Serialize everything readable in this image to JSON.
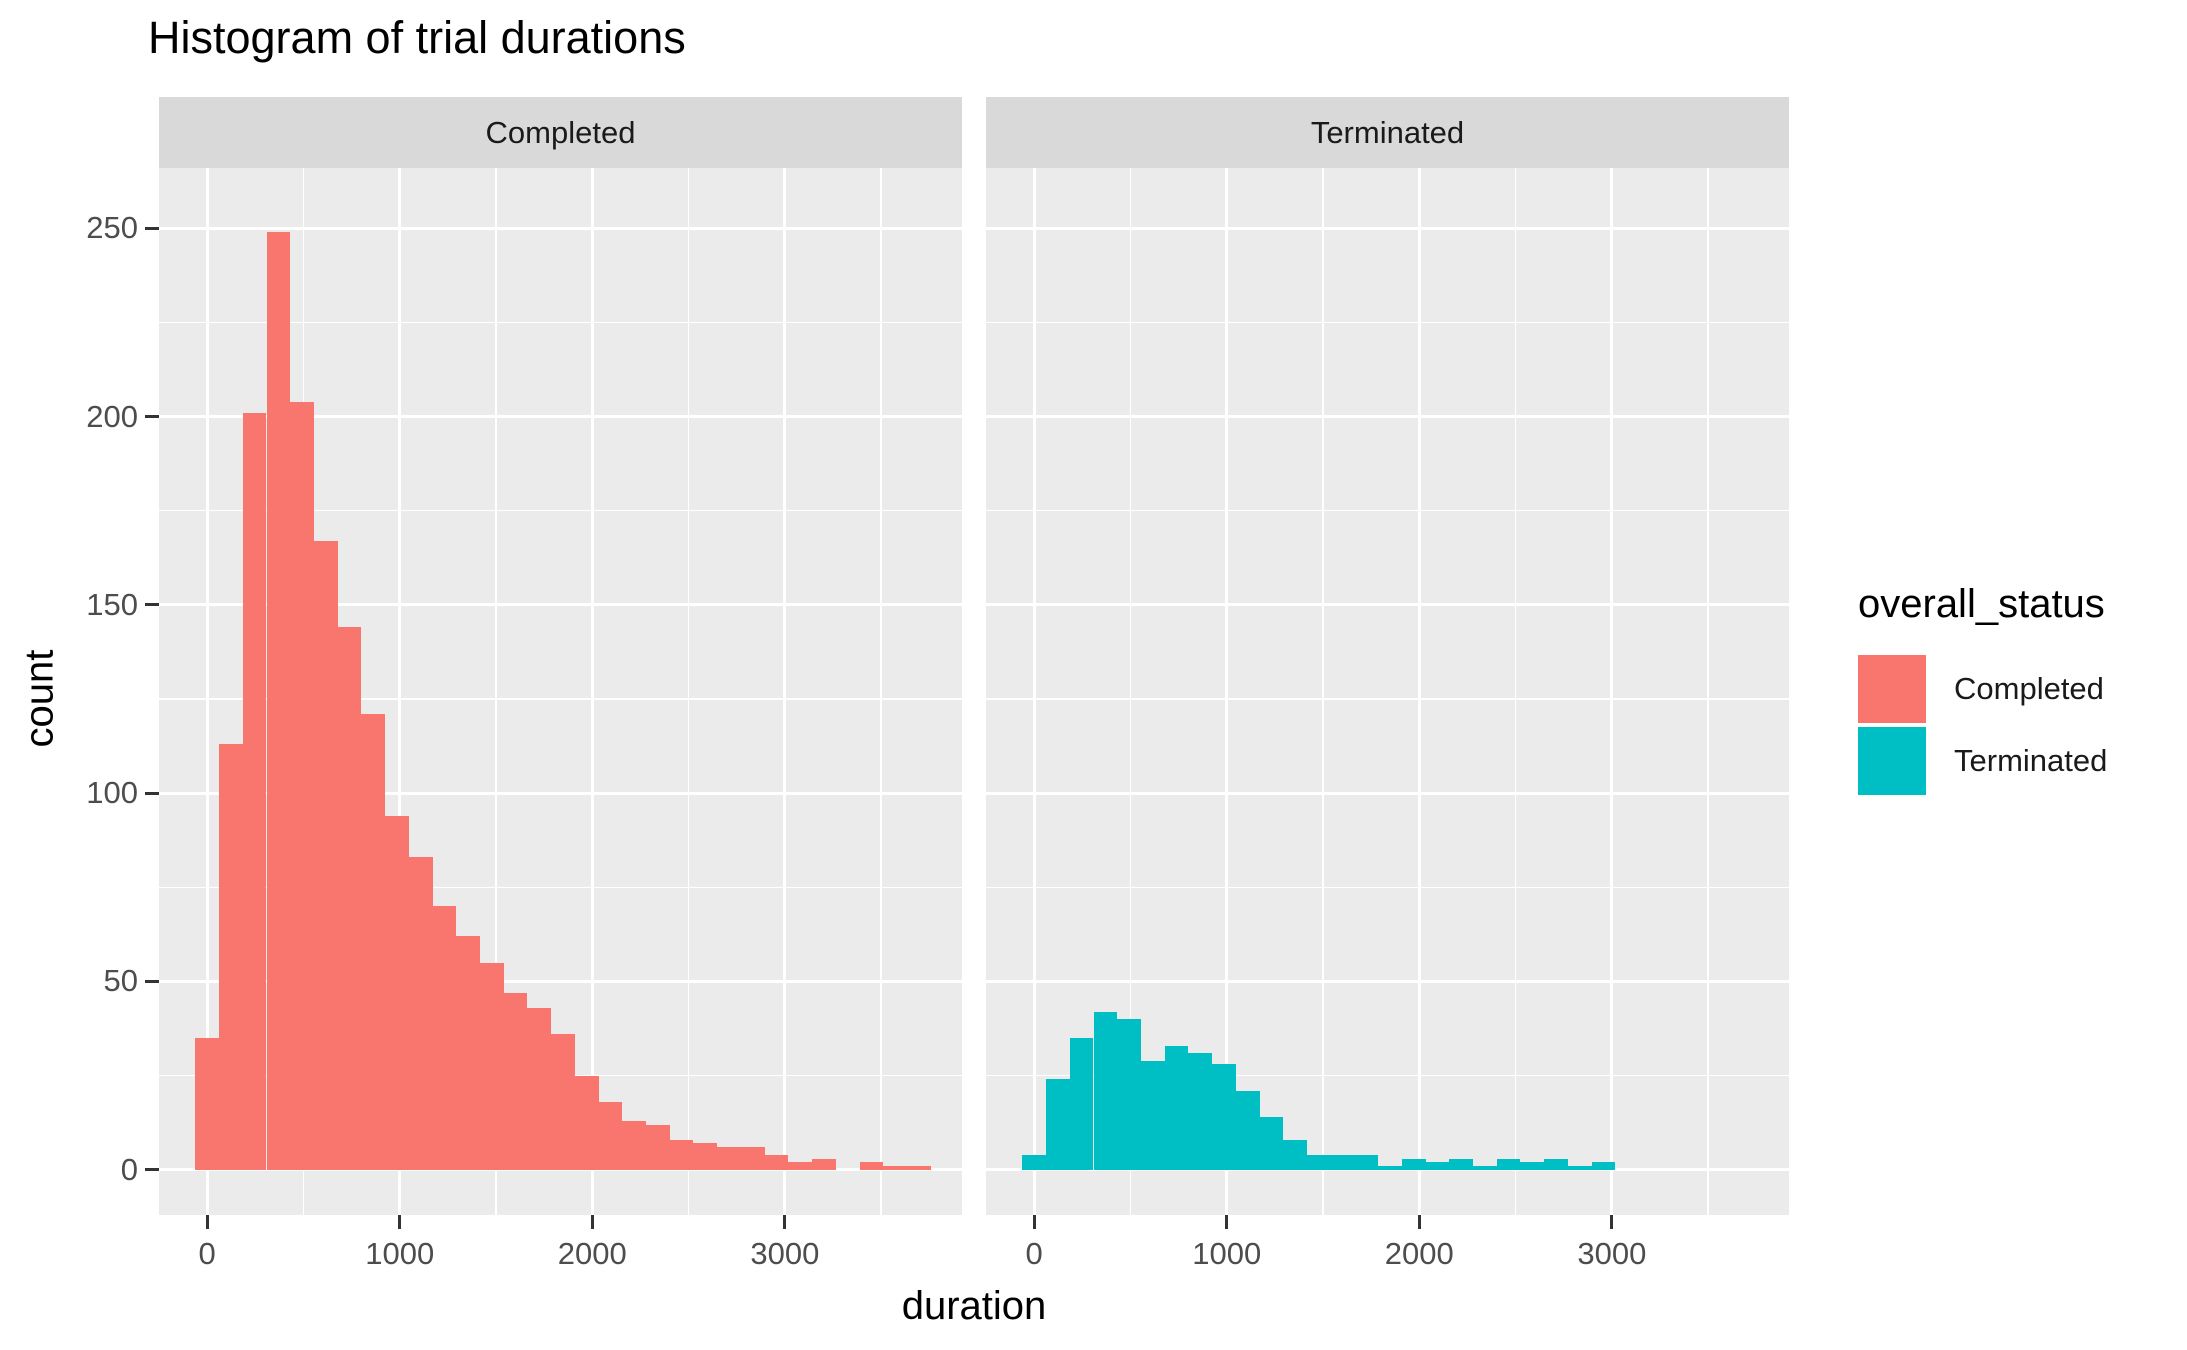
{
  "title": "Histogram of trial durations",
  "colors": {
    "panel_bg": "#EBEBEB",
    "strip_bg": "#D9D9D9",
    "grid": "#FFFFFF",
    "axis_text": "#4D4D4D",
    "tick_mark": "#333333",
    "completed": "#F8766D",
    "terminated": "#00BFC4"
  },
  "legend": {
    "title": "overall_status",
    "items": [
      {
        "label": "Completed",
        "color": "#F8766D"
      },
      {
        "label": "Terminated",
        "color": "#00BFC4"
      }
    ]
  },
  "chart_data": {
    "type": "bar",
    "subtype": "faceted-histogram",
    "title": "Histogram of trial durations",
    "xlabel": "duration",
    "ylabel": "count",
    "facets": [
      "Completed",
      "Terminated"
    ],
    "legend_title": "overall_status",
    "legend_position": "right",
    "grid": true,
    "bin_width": 123.2,
    "bin_first_center": 0,
    "x_domain": [
      -250,
      3920
    ],
    "y_domain": [
      -12,
      266
    ],
    "x_ticks": [
      0,
      1000,
      2000,
      3000
    ],
    "x_minor_ticks": [
      500,
      1500,
      2500,
      3500
    ],
    "y_ticks": [
      0,
      50,
      100,
      150,
      200,
      250
    ],
    "y_minor_ticks": [
      25,
      75,
      125,
      175,
      225
    ],
    "bin_centers": [
      0,
      123,
      246,
      370,
      493,
      616,
      739,
      862,
      986,
      1109,
      1232,
      1355,
      1478,
      1602,
      1725,
      1848,
      1971,
      2094,
      2218,
      2341,
      2464,
      2587,
      2710,
      2834,
      2957,
      3080,
      3203,
      3326,
      3450,
      3573,
      3696
    ],
    "series": [
      {
        "name": "Completed",
        "color": "#F8766D",
        "counts": [
          35,
          113,
          201,
          249,
          204,
          167,
          144,
          121,
          94,
          83,
          70,
          62,
          55,
          47,
          43,
          36,
          25,
          18,
          13,
          12,
          8,
          7,
          6,
          6,
          4,
          2,
          3,
          0,
          2,
          1,
          1
        ]
      },
      {
        "name": "Terminated",
        "color": "#00BFC4",
        "counts": [
          4,
          24,
          35,
          42,
          40,
          29,
          33,
          31,
          28,
          21,
          14,
          8,
          4,
          4,
          4,
          1,
          3,
          2,
          3,
          1,
          3,
          2,
          3,
          1,
          2,
          0,
          0,
          0,
          0,
          0,
          0
        ]
      }
    ]
  }
}
